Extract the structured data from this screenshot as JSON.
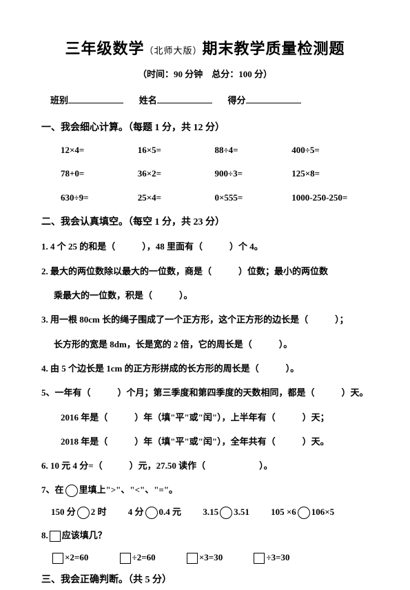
{
  "title": {
    "main1": "三年级数学",
    "edition": "（北师大版）",
    "main2": "期末教学质量检测题",
    "subtitle": "（时间：90 分钟　总分：100 分）"
  },
  "info": {
    "class_label": "班别",
    "name_label": "姓名",
    "score_label": "得分"
  },
  "s1": {
    "head": "一、我会细心计算。（每题 1 分，共 12 分）",
    "r1c1": "12×4=",
    "r1c2": "16×5=",
    "r1c3": "88÷4=",
    "r1c4": "400÷5=",
    "r2c1": "78+0=",
    "r2c2": "36×2=",
    "r2c3": "900÷3=",
    "r2c4": "125×8=",
    "r3c1": "630÷9=",
    "r3c2": "25×4=",
    "r3c3": "0×555=",
    "r3c4": "1000-250-250="
  },
  "s2": {
    "head": "二、我会认真填空。（每空 1 分，共 23 分）",
    "q1": "1. 4 个 25 的和是（　　　），48 里面有（　　　）个 4。",
    "q2a": "2. 最大的两位数除以最大的一位数，商是（　　　）位数；最小的两位数",
    "q2b": "乘最大的一位数，积是（　　　）。",
    "q3a": "3. 用一根 80cm 长的绳子围成了一个正方形，这个正方形的边长是（　　　）；",
    "q3b": "长方形的宽是 8dm，长是宽的 2 倍，它的周长是（　　　）。",
    "q4": "4. 由 5 个边长是 1cm 的正方形拼成的长方形的周长是（　　　）。",
    "q5a": "5、一年有（　　　）个月；第三季度和第四季度的天数相同，都是（　　　）天。",
    "q5b": "2016 年是（　　　）年（填\"平\"或\"闰\"），上半年有（　　　）天；",
    "q5c": "2018 年是（　　　）年（填\"平\"或\"闰\"），全年共有（　　　）天。",
    "q6": "6. 10 元 4 分=（　　　）元，27.50 读作（　　　　　　）。",
    "q7_head": "7、在",
    "q7_tail": "里填上\">\"、\"<\"、\"=\"。",
    "q7_1a": "150 分",
    "q7_1b": "2 时",
    "q7_2a": "4 分",
    "q7_2b": "0.4 元",
    "q7_3a": "3.15",
    "q7_3b": "3.51",
    "q7_4a": "105 ×6",
    "q7_4b": "106×5",
    "q8_head": "8.",
    "q8_tail": "应该填几？",
    "q8_1": "×2=60",
    "q8_2": "÷2=60",
    "q8_3": "×3=30",
    "q8_4": "÷3=30"
  },
  "s3": {
    "head": "三、我会正确判断。（共 5 分）"
  }
}
